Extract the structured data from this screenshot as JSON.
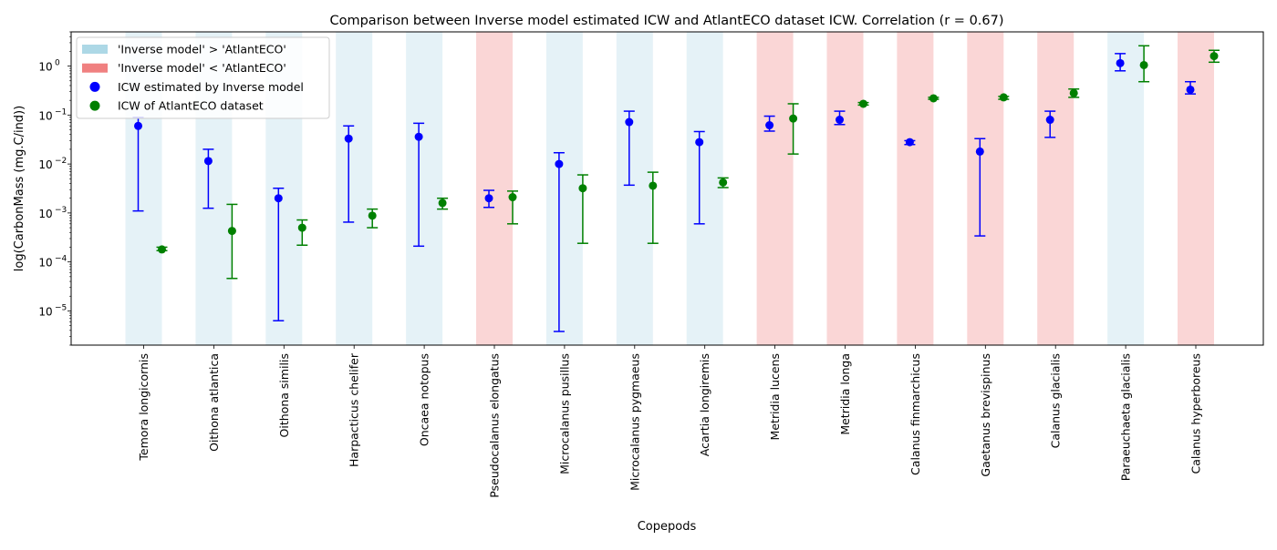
{
  "chart_data": {
    "type": "scatter",
    "title": "Comparison between Inverse model estimated ICW and AtlantECO dataset ICW. Correlation (r = 0.67)",
    "xlabel": "Copepods",
    "ylabel": "log(CarbonMass (mg.C/ind))",
    "yscale": "log",
    "ylim": [
      2e-06,
      5
    ],
    "grid": false,
    "legend_position": "top-left",
    "categories": [
      "Temora longicornis",
      "Oithona atlantica",
      "Oithona similis",
      "Harpacticus chelifer",
      "Oncaea notopus",
      "Pseudocalanus elongatus",
      "Microcalanus pusillus",
      "Microcalanus pygmaeus",
      "Acartia longiremis",
      "Metridia lucens",
      "Metridia longa",
      "Calanus finmarchicus",
      "Gaetanus brevispinus",
      "Calanus glacialis",
      "Paraeuchaeta glacialis",
      "Calanus hyperboreus"
    ],
    "background_bands": {
      "name_greater": "'Inverse model' > 'AtlantECO'",
      "name_less": "'Inverse model' < 'AtlantECO'",
      "color_greater": "#add8e6",
      "color_less": "#f08080",
      "per_category": [
        "greater",
        "greater",
        "greater",
        "greater",
        "greater",
        "less",
        "greater",
        "greater",
        "greater",
        "less",
        "less",
        "less",
        "less",
        "less",
        "greater",
        "less"
      ]
    },
    "series": [
      {
        "name": "ICW estimated by Inverse model",
        "color": "#0000ff",
        "values": [
          0.06,
          0.0115,
          0.002,
          0.033,
          0.036,
          0.002,
          0.01,
          0.072,
          0.028,
          0.062,
          0.08,
          0.028,
          0.018,
          0.08,
          1.15,
          0.33
        ],
        "lower": [
          0.0011,
          0.00125,
          6.3e-06,
          0.00065,
          0.00021,
          0.0013,
          3.8e-06,
          0.0037,
          0.0006,
          0.047,
          0.064,
          0.025,
          0.00034,
          0.035,
          0.8,
          0.27
        ],
        "upper": [
          0.09,
          0.02,
          0.0032,
          0.06,
          0.068,
          0.0029,
          0.017,
          0.12,
          0.046,
          0.095,
          0.12,
          0.03,
          0.033,
          0.12,
          1.8,
          0.48
        ]
      },
      {
        "name": "ICW of AtlantECO dataset",
        "color": "#008000",
        "values": [
          0.00018,
          0.00043,
          0.0005,
          0.00088,
          0.0016,
          0.0021,
          0.0032,
          0.0036,
          0.0042,
          0.085,
          0.17,
          0.22,
          0.23,
          0.28,
          1.05,
          1.6
        ],
        "lower": [
          0.00017,
          4.6e-05,
          0.00022,
          0.0005,
          0.0012,
          0.0006,
          0.00024,
          0.00024,
          0.0033,
          0.016,
          0.16,
          0.21,
          0.21,
          0.23,
          0.48,
          1.2
        ],
        "upper": [
          0.0002,
          0.0015,
          0.00072,
          0.0012,
          0.002,
          0.0028,
          0.006,
          0.0068,
          0.0052,
          0.17,
          0.18,
          0.23,
          0.24,
          0.34,
          2.6,
          2.1
        ]
      }
    ],
    "y_ticks": [
      {
        "value": 1e-05,
        "label": "10",
        "exp": "−5"
      },
      {
        "value": 0.0001,
        "label": "10",
        "exp": "−4"
      },
      {
        "value": 0.001,
        "label": "10",
        "exp": "−3"
      },
      {
        "value": 0.01,
        "label": "10",
        "exp": "−2"
      },
      {
        "value": 0.1,
        "label": "10",
        "exp": "−1"
      },
      {
        "value": 1,
        "label": "10",
        "exp": "0"
      }
    ]
  }
}
